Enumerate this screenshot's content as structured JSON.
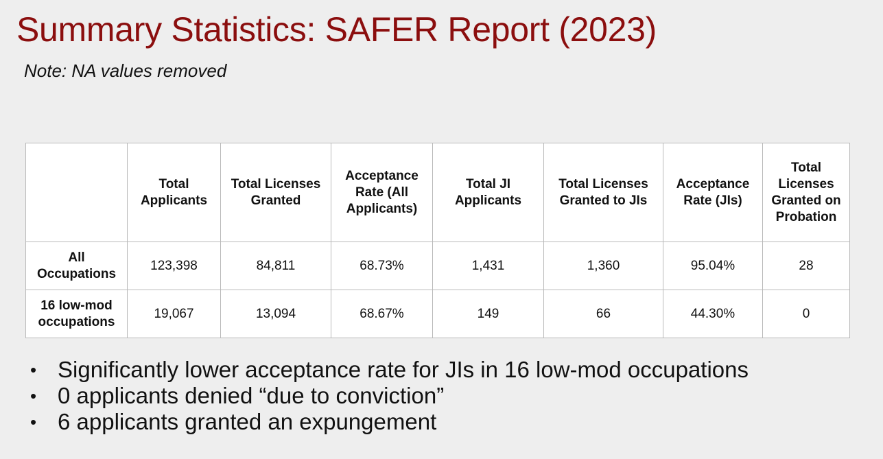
{
  "slide": {
    "title": "Summary Statistics: SAFER Report (2023)",
    "note": "Note: NA values removed"
  },
  "table": {
    "headers": [
      "",
      "Total Applicants",
      "Total Licenses Granted",
      "Acceptance Rate (All Applicants)",
      "Total JI Applicants",
      "Total Licenses Granted to JIs",
      "Acceptance Rate (JIs)",
      "Total Licenses Granted on Probation"
    ],
    "rows": [
      {
        "label": "All Occupations",
        "cells": [
          "123,398",
          "84,811",
          "68.73%",
          "1,431",
          "1,360",
          "95.04%",
          "28"
        ]
      },
      {
        "label": "16 low-mod occupations",
        "cells": [
          "19,067",
          "13,094",
          "68.67%",
          "149",
          "66",
          "44.30%",
          "0"
        ]
      }
    ]
  },
  "bullets": [
    "Significantly lower acceptance rate for JIs in 16 low-mod occupations",
    "0 applicants denied “due to conviction”",
    "6 applicants granted an expungement"
  ],
  "bullet_glyph": "•",
  "colors": {
    "title": "#8b0e0e",
    "background": "#eeeeee",
    "table_background": "#ffffff",
    "table_border": "#b9b9b9"
  }
}
